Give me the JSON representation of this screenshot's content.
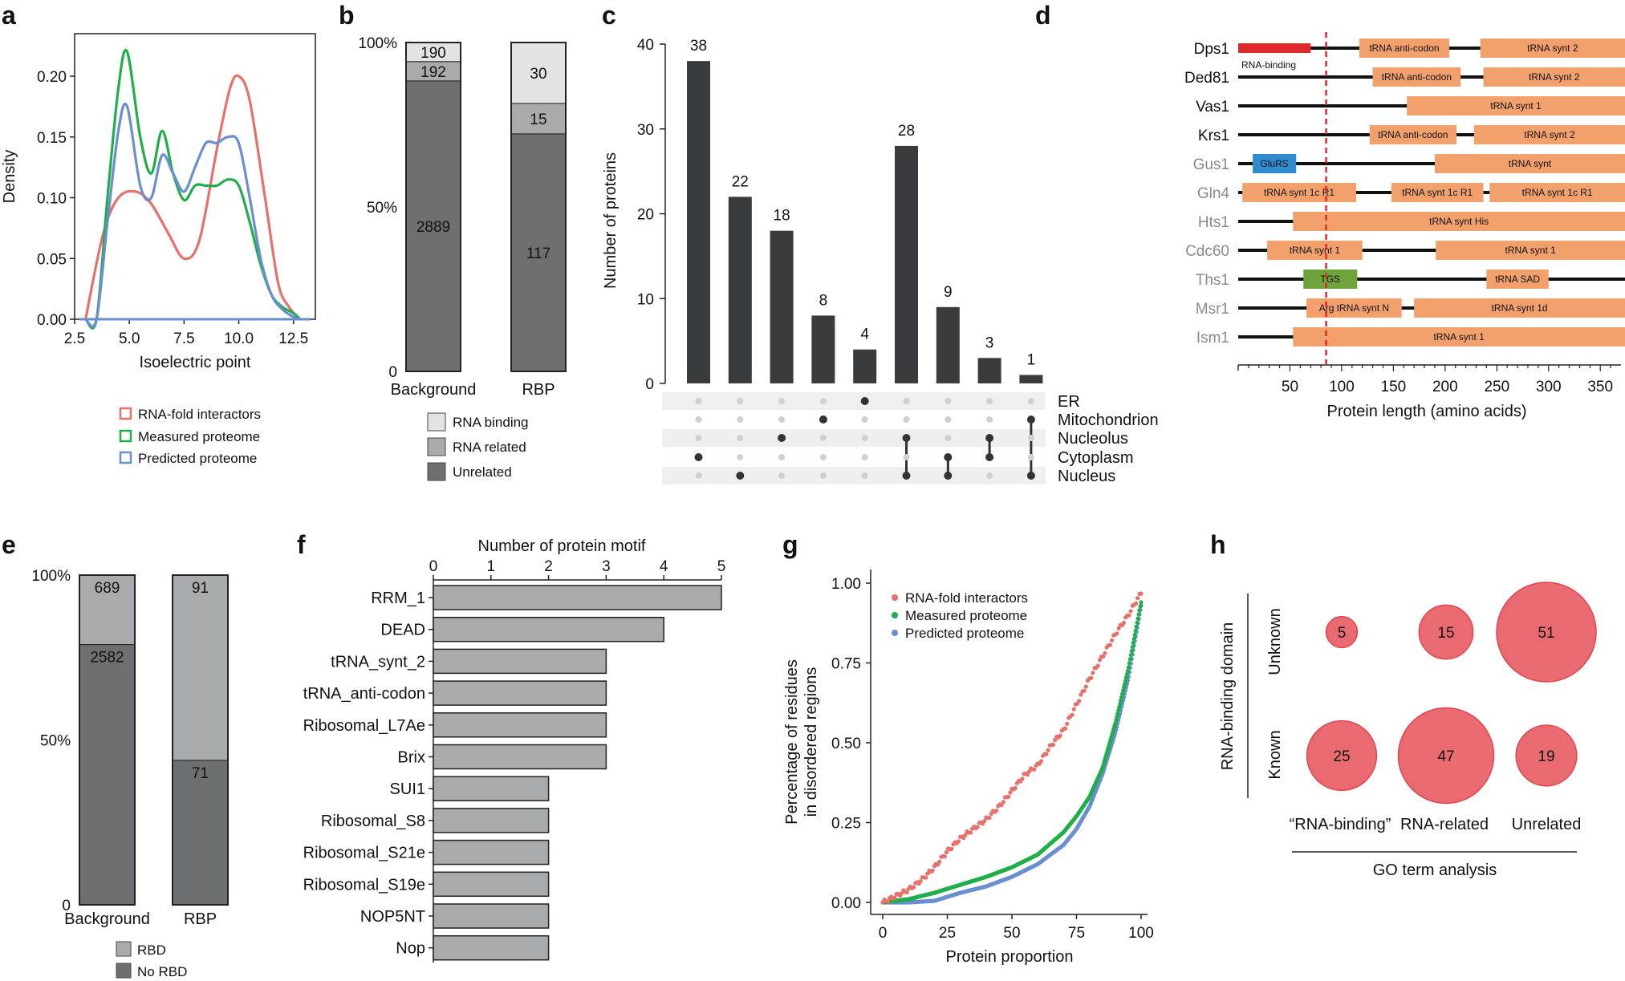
{
  "panels": {
    "a": "a",
    "b": "b",
    "c": "c",
    "d": "d",
    "e": "e",
    "f": "f",
    "g": "g",
    "h": "h"
  },
  "colors": {
    "red": "#e8706a",
    "green": "#1fae4a",
    "blue": "#6a8fd0",
    "dark_bar": "#3a3b3d",
    "mid_grey": "#7a7b7d",
    "light_grey": "#e2e3e4",
    "med_grey": "#a9aaab",
    "orange": "#f2a16c",
    "red_domain": "#e02a2a",
    "blue_domain": "#2f8ccf",
    "green_domain": "#6ea23a",
    "bubble": "#ea6a72"
  },
  "chart_data": [
    {
      "id": "a",
      "type": "line",
      "title": "",
      "xlabel": "Isoelectric point",
      "ylabel": "Density",
      "xlim": [
        2.5,
        13.5
      ],
      "ylim": [
        0,
        0.235
      ],
      "xticks": [
        "2.5",
        "5.0",
        "7.5",
        "10.0",
        "12.5"
      ],
      "yticks": [
        "0.00",
        "0.05",
        "0.10",
        "0.15",
        "0.20"
      ],
      "series": [
        {
          "name": "RNA-fold interactors",
          "x": [
            3.0,
            3.8,
            4.5,
            5.3,
            6.0,
            6.8,
            7.5,
            8.2,
            9.0,
            9.6,
            10.0,
            10.5,
            11.2,
            11.8,
            12.3,
            12.8
          ],
          "y": [
            0.0,
            0.07,
            0.1,
            0.105,
            0.095,
            0.07,
            0.05,
            0.065,
            0.14,
            0.19,
            0.2,
            0.18,
            0.1,
            0.03,
            0.01,
            0.0
          ]
        },
        {
          "name": "Measured proteome",
          "x": [
            3.0,
            3.5,
            4.0,
            4.5,
            4.9,
            5.5,
            6.0,
            6.5,
            7.0,
            7.5,
            8.0,
            8.5,
            9.0,
            9.5,
            10.0,
            10.5,
            11.0,
            11.5,
            12.0,
            12.5,
            12.8
          ],
          "y": [
            0.0,
            0.0,
            0.1,
            0.19,
            0.22,
            0.15,
            0.12,
            0.155,
            0.12,
            0.098,
            0.11,
            0.11,
            0.11,
            0.115,
            0.11,
            0.08,
            0.045,
            0.02,
            0.01,
            0.005,
            0.0
          ]
        },
        {
          "name": "Predicted proteome",
          "x": [
            3.0,
            3.5,
            4.0,
            4.5,
            4.9,
            5.5,
            6.0,
            6.5,
            7.0,
            7.5,
            8.0,
            8.5,
            9.0,
            9.5,
            10.0,
            10.5,
            11.0,
            11.5,
            12.0,
            12.5,
            12.8
          ],
          "y": [
            0.0,
            0.0,
            0.08,
            0.155,
            0.175,
            0.11,
            0.1,
            0.135,
            0.12,
            0.105,
            0.125,
            0.145,
            0.145,
            0.15,
            0.145,
            0.1,
            0.05,
            0.02,
            0.008,
            0.002,
            0.0
          ]
        }
      ],
      "legend_position": "below"
    },
    {
      "id": "b",
      "type": "bar",
      "stacked": true,
      "percent": true,
      "categories": [
        "Background",
        "RBP"
      ],
      "series": [
        {
          "name": "Unrelated",
          "values": [
            2889,
            117
          ]
        },
        {
          "name": "RNA related",
          "values": [
            192,
            15
          ]
        },
        {
          "name": "RNA binding",
          "values": [
            190,
            30
          ]
        }
      ],
      "yticks": [
        "0",
        "50%",
        "100%"
      ],
      "legend_position": "below"
    },
    {
      "id": "c",
      "type": "bar",
      "title": "",
      "ylabel": "Number of proteins",
      "ylim": [
        0,
        40
      ],
      "yticks": [
        "0",
        "10",
        "20",
        "30",
        "40"
      ],
      "values": [
        38,
        22,
        18,
        8,
        4,
        28,
        9,
        3,
        1
      ],
      "value_labels": [
        "38",
        "22",
        "18",
        "8",
        "4",
        "28",
        "9",
        "3",
        "1"
      ],
      "sets": [
        "ER",
        "Mitochondrion",
        "Nucleolus",
        "Cytoplasm",
        "Nucleus"
      ],
      "memberships": [
        [
          "Cytoplasm"
        ],
        [
          "Nucleus"
        ],
        [
          "Nucleolus"
        ],
        [
          "Mitochondrion"
        ],
        [
          "ER"
        ],
        [
          "Nucleolus",
          "Nucleus"
        ],
        [
          "Cytoplasm",
          "Nucleus"
        ],
        [
          "Nucleolus",
          "Cytoplasm"
        ],
        [
          "Mitochondrion",
          "Nucleus"
        ]
      ]
    },
    {
      "id": "d",
      "type": "table",
      "xlabel": "Protein length (amino acids)",
      "xlim": [
        0,
        370
      ],
      "xticks": [
        "50",
        "100",
        "150",
        "200",
        "250",
        "300",
        "350"
      ],
      "marker_line": 85,
      "proteins": [
        {
          "name": "Dps1",
          "known": true,
          "length": 375,
          "domains": [
            {
              "label": "RNA-binding",
              "start": 0,
              "end": 70,
              "color": "red",
              "label_below": true
            },
            {
              "label": "tRNA anti-codon",
              "start": 117,
              "end": 204,
              "color": "orange"
            },
            {
              "label": "tRNA synt 2",
              "start": 234,
              "end": 375,
              "color": "orange"
            }
          ]
        },
        {
          "name": "Ded81",
          "known": true,
          "length": 375,
          "domains": [
            {
              "label": "tRNA anti-codon",
              "start": 130,
              "end": 215,
              "color": "orange"
            },
            {
              "label": "tRNA synt 2",
              "start": 237,
              "end": 375,
              "color": "orange"
            }
          ]
        },
        {
          "name": "Vas1",
          "known": true,
          "length": 375,
          "domains": [
            {
              "label": "tRNA synt 1",
              "start": 163,
              "end": 375,
              "color": "orange"
            }
          ]
        },
        {
          "name": "Krs1",
          "known": true,
          "length": 375,
          "domains": [
            {
              "label": "tRNA anti-codon",
              "start": 127,
              "end": 211,
              "color": "orange"
            },
            {
              "label": "tRNA synt 2",
              "start": 228,
              "end": 375,
              "color": "orange"
            }
          ]
        },
        {
          "name": "Gus1",
          "known": false,
          "length": 375,
          "domains": [
            {
              "label": "GluRS",
              "start": 14,
              "end": 56,
              "color": "blue"
            },
            {
              "label": "tRNA synt",
              "start": 190,
              "end": 375,
              "color": "orange"
            }
          ]
        },
        {
          "name": "Gln4",
          "known": false,
          "length": 375,
          "domains": [
            {
              "label": "tRNA synt 1c R1",
              "start": 4,
              "end": 114,
              "color": "orange"
            },
            {
              "label": "tRNA synt 1c R1",
              "start": 148,
              "end": 237,
              "color": "orange"
            },
            {
              "label": "tRNA synt 1c R1",
              "start": 243,
              "end": 375,
              "color": "orange"
            }
          ]
        },
        {
          "name": "Hts1",
          "known": false,
          "length": 375,
          "domains": [
            {
              "label": "tRNA synt His",
              "start": 53,
              "end": 375,
              "color": "orange"
            }
          ]
        },
        {
          "name": "Cdc60",
          "known": false,
          "length": 375,
          "domains": [
            {
              "label": "tRNA synt 1",
              "start": 28,
              "end": 120,
              "color": "orange"
            },
            {
              "label": "tRNA synt 1",
              "start": 191,
              "end": 375,
              "color": "orange"
            }
          ]
        },
        {
          "name": "Ths1",
          "known": false,
          "length": 375,
          "domains": [
            {
              "label": "TGS",
              "start": 63,
              "end": 115,
              "color": "green"
            },
            {
              "label": "tRNA SAD",
              "start": 240,
              "end": 300,
              "color": "orange"
            }
          ]
        },
        {
          "name": "Msr1",
          "known": false,
          "length": 375,
          "domains": [
            {
              "label": "Arg tRNA synt N",
              "start": 66,
              "end": 158,
              "color": "orange"
            },
            {
              "label": "tRNA synt 1d",
              "start": 170,
              "end": 375,
              "color": "orange"
            }
          ]
        },
        {
          "name": "Ism1",
          "known": false,
          "length": 375,
          "domains": [
            {
              "label": "tRNA synt 1",
              "start": 53,
              "end": 375,
              "color": "orange"
            }
          ]
        }
      ]
    },
    {
      "id": "e",
      "type": "bar",
      "stacked": true,
      "percent": true,
      "categories": [
        "Background",
        "RBP"
      ],
      "series": [
        {
          "name": "No RBD",
          "values": [
            2582,
            71
          ]
        },
        {
          "name": "RBD",
          "values": [
            689,
            91
          ]
        }
      ],
      "yticks": [
        "0",
        "50%",
        "100%"
      ],
      "legend_position": "below"
    },
    {
      "id": "f",
      "type": "bar",
      "orientation": "horizontal",
      "xlabel": "Number of protein motif",
      "xlim": [
        0,
        5
      ],
      "xticks": [
        "0",
        "1",
        "2",
        "3",
        "4",
        "5"
      ],
      "categories": [
        "RRM_1",
        "DEAD",
        "tRNA_synt_2",
        "tRNA_anti-codon",
        "Ribosomal_L7Ae",
        "Brix",
        "SUI1",
        "Ribosomal_S8",
        "Ribosomal_S21e",
        "Ribosomal_S19e",
        "NOP5NT",
        "Nop"
      ],
      "values": [
        5,
        4,
        3,
        3,
        3,
        3,
        2,
        2,
        2,
        2,
        2,
        2
      ]
    },
    {
      "id": "g",
      "type": "scatter",
      "xlabel": "Protein proportion",
      "ylabel": [
        "Percentage of residues",
        "in disordered regions"
      ],
      "xlim": [
        0,
        100
      ],
      "ylim": [
        0,
        1.0
      ],
      "xticks": [
        "0",
        "25",
        "50",
        "75",
        "100"
      ],
      "yticks": [
        "0.00",
        "0.25",
        "0.50",
        "0.75",
        "1.00"
      ],
      "series": [
        {
          "name": "RNA-fold interactors",
          "x": [
            0,
            5,
            10,
            15,
            20,
            25,
            30,
            35,
            40,
            45,
            50,
            55,
            60,
            65,
            70,
            75,
            80,
            85,
            90,
            95,
            100
          ],
          "y": [
            0.0,
            0.02,
            0.04,
            0.07,
            0.11,
            0.16,
            0.2,
            0.23,
            0.26,
            0.3,
            0.35,
            0.4,
            0.43,
            0.49,
            0.54,
            0.62,
            0.7,
            0.77,
            0.84,
            0.9,
            0.97
          ]
        },
        {
          "name": "Measured proteome",
          "x": [
            0,
            10,
            20,
            30,
            40,
            50,
            60,
            70,
            75,
            80,
            85,
            90,
            95,
            100
          ],
          "y": [
            0.0,
            0.01,
            0.03,
            0.055,
            0.08,
            0.11,
            0.15,
            0.22,
            0.27,
            0.33,
            0.42,
            0.56,
            0.73,
            0.94
          ]
        },
        {
          "name": "Predicted proteome",
          "x": [
            0,
            10,
            20,
            30,
            40,
            50,
            60,
            70,
            75,
            80,
            85,
            90,
            95,
            100
          ],
          "y": [
            0.0,
            0.0,
            0.005,
            0.03,
            0.05,
            0.08,
            0.12,
            0.18,
            0.23,
            0.3,
            0.4,
            0.53,
            0.7,
            0.93
          ]
        }
      ],
      "legend_position": "top-left"
    },
    {
      "id": "h",
      "type": "scatter",
      "subtype": "bubble",
      "xlabel": "GO term analysis",
      "ylabel": "RNA-binding domain",
      "categories_x": [
        "“RNA-binding”",
        "RNA-related",
        "Unrelated"
      ],
      "categories_y": [
        "Unknown",
        "Known"
      ],
      "points": [
        {
          "x": "“RNA-binding”",
          "y": "Unknown",
          "value": 5
        },
        {
          "x": "RNA-related",
          "y": "Unknown",
          "value": 15
        },
        {
          "x": "Unrelated",
          "y": "Unknown",
          "value": 51
        },
        {
          "x": "“RNA-binding”",
          "y": "Known",
          "value": 25
        },
        {
          "x": "RNA-related",
          "y": "Known",
          "value": 47
        },
        {
          "x": "Unrelated",
          "y": "Known",
          "value": 19
        }
      ]
    }
  ]
}
